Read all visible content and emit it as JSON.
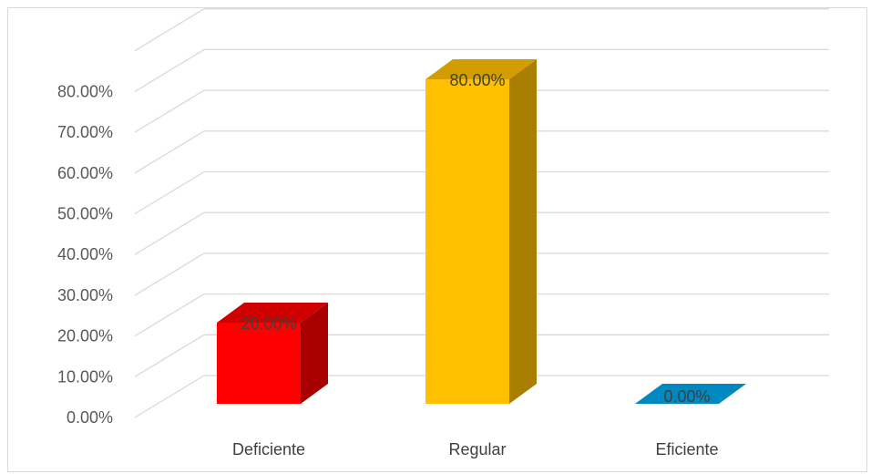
{
  "chart_data": {
    "type": "bar",
    "style": "3d-column",
    "categories": [
      "Deficiente",
      "Regular",
      "Eficiente"
    ],
    "values": [
      20,
      80,
      0
    ],
    "value_labels": [
      "20.00%",
      "80.00%",
      "0.00%"
    ],
    "colors": [
      "#ff0000",
      "#ffc000",
      "#0088c0"
    ],
    "y_ticks": [
      0,
      10,
      20,
      30,
      40,
      50,
      60,
      70,
      80
    ],
    "y_tick_labels": [
      "0.00%",
      "10.00%",
      "20.00%",
      "30.00%",
      "40.00%",
      "50.00%",
      "60.00%",
      "70.00%",
      "80.00%"
    ],
    "ylim": [
      0,
      90
    ],
    "grid": true,
    "legend": "none"
  }
}
